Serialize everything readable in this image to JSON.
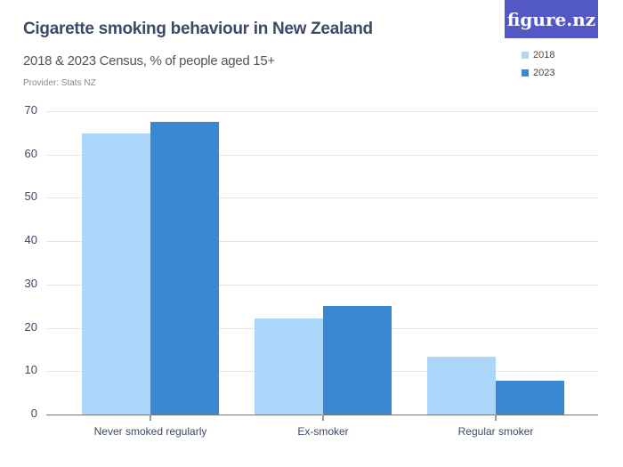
{
  "header": {
    "title": "Cigarette smoking behaviour in New Zealand",
    "subtitle": "2018 & 2023 Census, % of people aged 15+",
    "provider": "Provider: Stats NZ",
    "logo": "figure.nz"
  },
  "legend": [
    {
      "label": "2018",
      "color": "#acd7fa"
    },
    {
      "label": "2023",
      "color": "#3a88d2"
    }
  ],
  "y_ticks": [
    "0",
    "10",
    "20",
    "30",
    "40",
    "50",
    "60",
    "70"
  ],
  "chart_data": {
    "type": "bar",
    "title": "Cigarette smoking behaviour in New Zealand",
    "subtitle": "2018 & 2023 Census, % of people aged 15+",
    "categories": [
      "Never smoked regularly",
      "Ex-smoker",
      "Regular smoker"
    ],
    "series": [
      {
        "name": "2018",
        "color": "#acd7fa",
        "values": [
          64.9,
          22.2,
          13.3
        ]
      },
      {
        "name": "2023",
        "color": "#3a88d2",
        "values": [
          67.5,
          25.0,
          7.8
        ]
      }
    ],
    "xlabel": "",
    "ylabel": "",
    "ylim": [
      0,
      70
    ],
    "yticks": [
      0,
      10,
      20,
      30,
      40,
      50,
      60,
      70
    ],
    "grid": true,
    "legend_position": "top-right"
  }
}
